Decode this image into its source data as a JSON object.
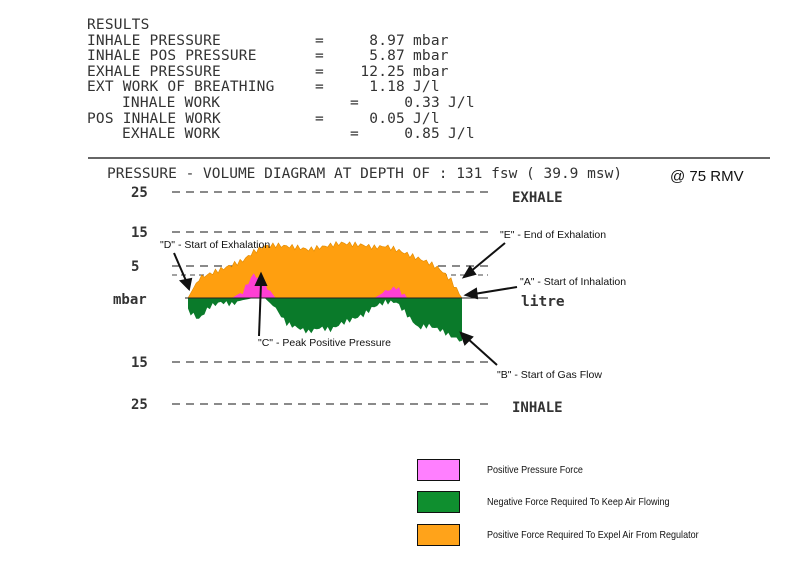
{
  "results": {
    "heading": "RESULTS",
    "rows": [
      {
        "label": "INHALE PRESSURE",
        "eq": "=",
        "value": "8.97",
        "unit": "mbar"
      },
      {
        "label": "INHALE POS PRESSURE",
        "eq": "=",
        "value": "5.87",
        "unit": "mbar"
      },
      {
        "label": "EXHALE PRESSURE",
        "eq": "=",
        "value": "12.25",
        "unit": "mbar"
      },
      {
        "label": "EXT WORK OF BREATHING",
        "eq": "=",
        "value": "1.18",
        "unit": "J/l"
      },
      {
        "label": "INHALE WORK",
        "eq": "=",
        "value": "0.33",
        "unit": "J/l",
        "indent": true
      },
      {
        "label": "POS INHALE WORK",
        "eq": "=",
        "value": "0.05",
        "unit": "J/l"
      },
      {
        "label": "EXHALE WORK",
        "eq": "=",
        "value": "0.85",
        "unit": "J/l",
        "indent": true
      }
    ]
  },
  "chart_data": {
    "type": "area",
    "title": "PRESSURE - VOLUME DIAGRAM AT DEPTH OF : 131 fsw ( 39.9 msw)",
    "title_suffix": "@ 75 RMV",
    "ylabel": "mbar",
    "xlabel": "litre",
    "ytick_labels": [
      "25",
      "15",
      "5",
      "15",
      "25"
    ],
    "y_ticks": [
      25,
      15,
      5,
      -15,
      -25
    ],
    "ylim": [
      -25,
      25
    ],
    "top_label": "EXHALE",
    "bottom_label": "INHALE",
    "x": [
      0,
      0.04,
      0.08,
      0.12,
      0.16,
      0.2,
      0.24,
      0.28,
      0.32,
      0.36,
      0.4,
      0.44,
      0.48,
      0.52,
      0.56,
      0.6,
      0.64,
      0.68,
      0.72,
      0.76,
      0.8,
      0.84,
      0.88,
      0.92,
      0.96,
      1.0
    ],
    "series": [
      {
        "name": "Positive Force Required To Expel Air From Regulator",
        "values": [
          0,
          4.5,
          5.5,
          6.5,
          7.5,
          8.5,
          10.5,
          11.8,
          12,
          11.8,
          11.5,
          11,
          11.5,
          12,
          12.5,
          12.2,
          12,
          11.5,
          11.8,
          11,
          10,
          9,
          8,
          6.5,
          4,
          0
        ]
      },
      {
        "name": "Positive Pressure Force",
        "values": [
          0,
          0,
          0,
          0,
          0,
          1.5,
          5.5,
          3,
          0,
          0,
          0,
          0,
          0,
          0,
          0,
          0,
          0,
          0,
          1.5,
          2.5,
          0,
          0,
          0,
          0,
          0,
          0
        ]
      },
      {
        "name": "Negative Force Required To Keep Air Flowing",
        "values": [
          -3,
          -5,
          -2,
          -1,
          -1.5,
          -0.5,
          0,
          0,
          -2.5,
          -6,
          -7,
          -8,
          -7,
          -7.5,
          -6,
          -5,
          -4,
          -2,
          -1,
          -1,
          -4,
          -7,
          -6.5,
          -7.5,
          -9,
          -10
        ]
      }
    ],
    "colors": {
      "exhale": "#ff9f0f",
      "positive": "#ff3fd4",
      "negative": "#0a7a2a"
    },
    "annotations": [
      {
        "text": "\"D\" - Start of Exhalation"
      },
      {
        "text": "\"E\" - End of Exhalation"
      },
      {
        "text": "\"A\" - Start of  Inhalation"
      },
      {
        "text": "\"C\" - Peak Positive Pressure"
      },
      {
        "text": "\"B\" - Start of Gas Flow"
      }
    ]
  },
  "legend": [
    {
      "label": "Positive Pressure Force",
      "color": "#ff7fff"
    },
    {
      "label": "Negative Force Required To Keep Air Flowing",
      "color": "#0f8f2f"
    },
    {
      "label": "Positive Force Required To Expel Air From Regulator",
      "color": "#ffa31a"
    }
  ]
}
